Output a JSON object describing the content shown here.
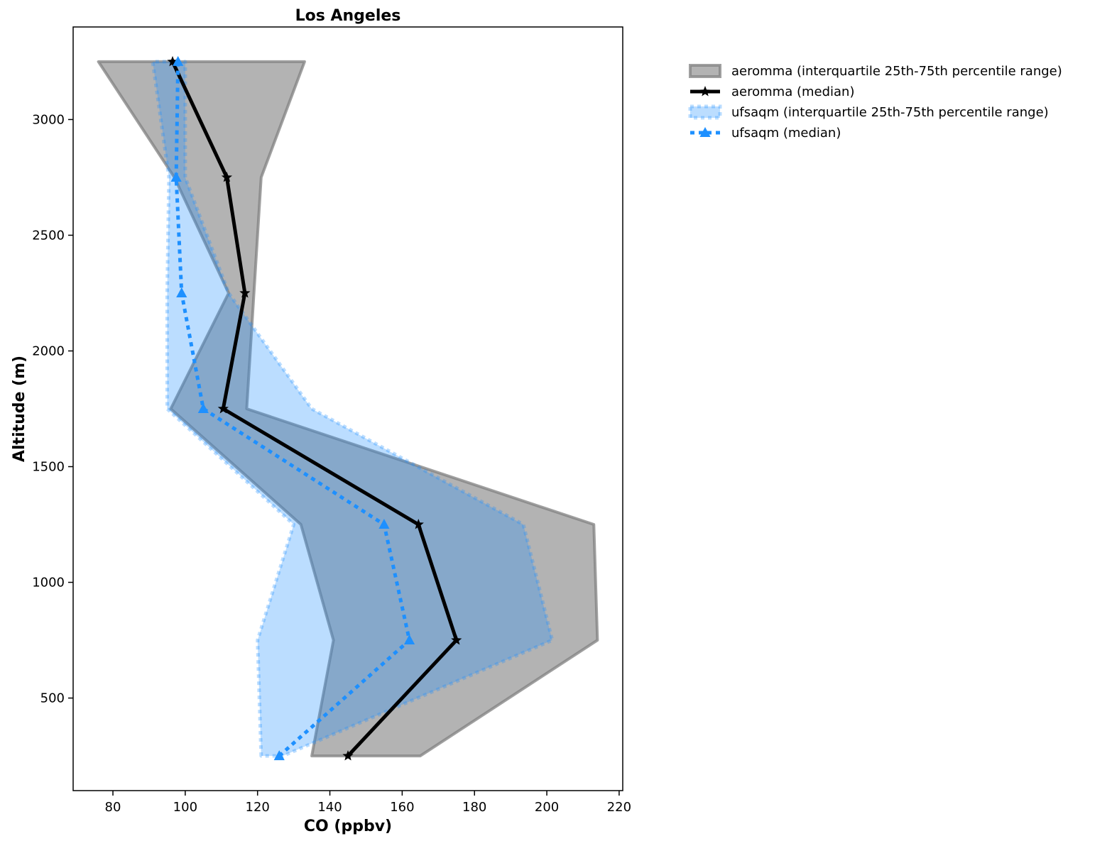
{
  "chart_data": {
    "type": "line",
    "title": "Los Angeles",
    "xlabel": "CO (ppbv)",
    "ylabel": "Altitude (m)",
    "xlim": [
      69,
      221
    ],
    "ylim": [
      100,
      3400
    ],
    "xticks": [
      80,
      100,
      120,
      140,
      160,
      180,
      200,
      220
    ],
    "yticks": [
      500,
      1000,
      1500,
      2000,
      2500,
      3000
    ],
    "grid": false,
    "legend_position": "outside-top-right",
    "altitudes": [
      250,
      750,
      1250,
      1750,
      2250,
      2750,
      3250
    ],
    "series": [
      {
        "name": "aeromma (interquartile 25th-75th percentile range)",
        "kind": "band",
        "color": "#808080",
        "low": [
          135,
          141,
          132,
          96,
          112,
          97,
          76
        ],
        "high": [
          165,
          214,
          213,
          117,
          119,
          121,
          133
        ]
      },
      {
        "name": "aeromma (median)",
        "kind": "line",
        "color": "#000000",
        "marker": "star",
        "values": [
          145,
          175,
          164.5,
          110.5,
          116.5,
          111.5,
          96.5
        ]
      },
      {
        "name": "ufsaqm (interquartile 25th-75th percentile range)",
        "kind": "band",
        "color": "#1e90ff",
        "low": [
          121,
          120,
          130,
          95,
          95,
          95.5,
          91
        ],
        "high": [
          127,
          201.5,
          193.5,
          135,
          112,
          100,
          100
        ]
      },
      {
        "name": "ufsaqm (median)",
        "kind": "line",
        "color": "#1e90ff",
        "marker": "triangle",
        "values": [
          126,
          162,
          155,
          105,
          99,
          97.5,
          98
        ]
      }
    ]
  }
}
